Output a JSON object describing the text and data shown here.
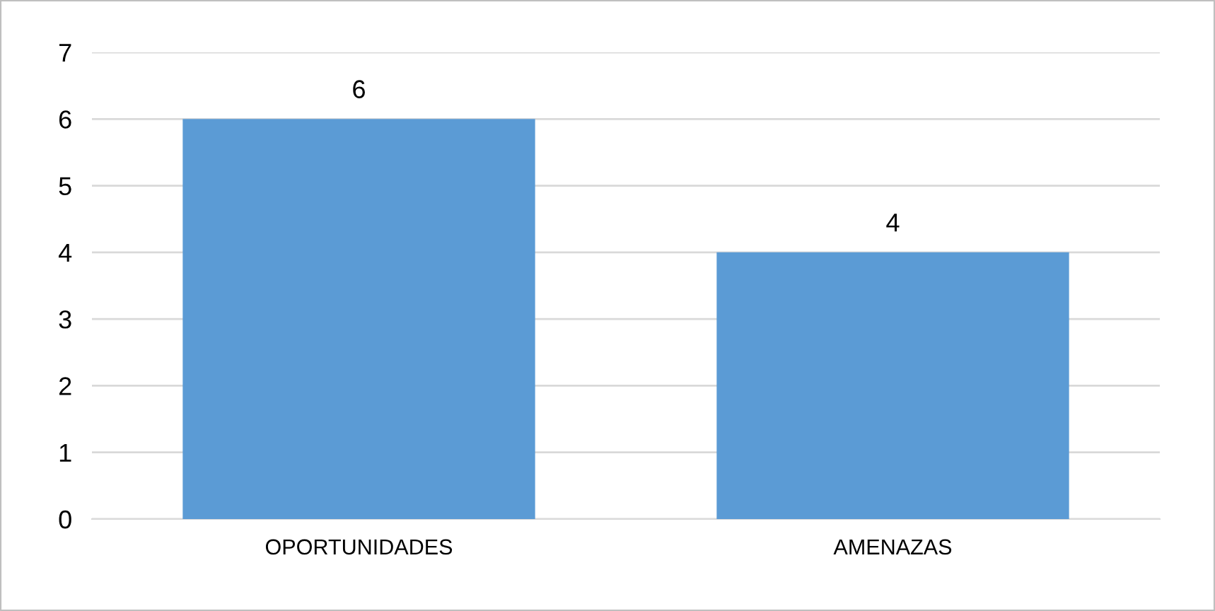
{
  "chart_data": {
    "type": "bar",
    "categories": [
      "OPORTUNIDADES",
      "AMENAZAS"
    ],
    "values": [
      6,
      4
    ],
    "color": "#5b9bd5",
    "ylim": [
      0,
      7
    ],
    "yticks": [
      0,
      1,
      2,
      3,
      4,
      5,
      6,
      7
    ],
    "grid": "y",
    "data_labels": true,
    "legend": false
  }
}
